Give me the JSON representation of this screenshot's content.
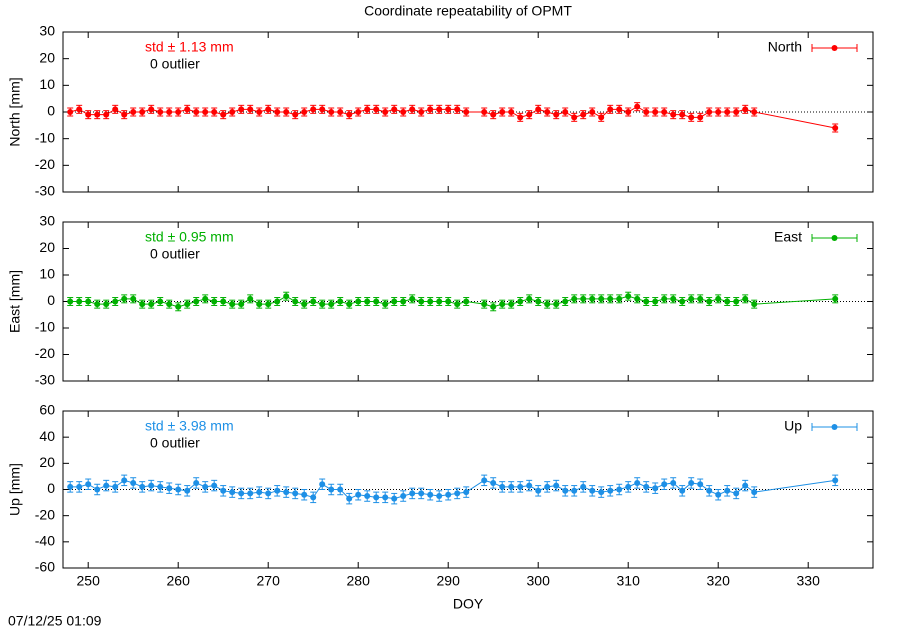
{
  "title": "Coordinate repeatability of OPMT",
  "timestamp": "07/12/25 01:09",
  "chart_data": [
    {
      "type": "line",
      "ylabel": "North [mm]",
      "annotations": [
        "std ± 1.13 mm",
        "0 outlier"
      ],
      "x": [
        248,
        249,
        250,
        251,
        252,
        253,
        254,
        255,
        256,
        257,
        258,
        259,
        260,
        261,
        262,
        263,
        264,
        265,
        266,
        267,
        268,
        269,
        270,
        271,
        272,
        273,
        274,
        275,
        276,
        277,
        278,
        279,
        280,
        281,
        282,
        283,
        284,
        285,
        286,
        287,
        288,
        289,
        290,
        291,
        292,
        294,
        295,
        296,
        297,
        298,
        299,
        300,
        301,
        302,
        303,
        304,
        305,
        306,
        307,
        308,
        309,
        310,
        311,
        312,
        313,
        314,
        315,
        316,
        317,
        318,
        319,
        320,
        321,
        322,
        323,
        324,
        333
      ],
      "series": [
        {
          "name": "North",
          "color": "#ff0000",
          "error": 1.5,
          "values": [
            0,
            1,
            -1,
            -1,
            -1,
            1,
            -1,
            0,
            0,
            1,
            0,
            0,
            0,
            1,
            0,
            0,
            0,
            -1,
            0,
            1,
            1,
            0,
            1,
            0,
            0,
            -1,
            0,
            1,
            1,
            0,
            0,
            -1,
            0,
            1,
            1,
            0,
            1,
            0,
            1,
            0,
            1,
            1,
            1,
            1,
            0,
            0,
            -1,
            0,
            0,
            -2,
            -1,
            1,
            0,
            -1,
            0,
            -2,
            -1,
            0,
            -2,
            1,
            1,
            0,
            2,
            0,
            0,
            0,
            -1,
            -1,
            -2,
            -2,
            0,
            0,
            0,
            0,
            1,
            0,
            -6
          ]
        }
      ],
      "xlim": [
        247.2,
        337.2
      ],
      "xticks": [
        250,
        260,
        270,
        280,
        290,
        300,
        310,
        320,
        330
      ],
      "xtick_labels": false,
      "ylim": [
        -30,
        30
      ],
      "yticks": [
        -30,
        -20,
        -10,
        0,
        10,
        20,
        30
      ],
      "zero_line": true,
      "legend": "upper right"
    },
    {
      "type": "line",
      "ylabel": "East [mm]",
      "annotations": [
        "std ± 0.95 mm",
        "0 outlier"
      ],
      "x": [
        248,
        249,
        250,
        251,
        252,
        253,
        254,
        255,
        256,
        257,
        258,
        259,
        260,
        261,
        262,
        263,
        264,
        265,
        266,
        267,
        268,
        269,
        270,
        271,
        272,
        273,
        274,
        275,
        276,
        277,
        278,
        279,
        280,
        281,
        282,
        283,
        284,
        285,
        286,
        287,
        288,
        289,
        290,
        291,
        292,
        294,
        295,
        296,
        297,
        298,
        299,
        300,
        301,
        302,
        303,
        304,
        305,
        306,
        307,
        308,
        309,
        310,
        311,
        312,
        313,
        314,
        315,
        316,
        317,
        318,
        319,
        320,
        321,
        322,
        323,
        324,
        333
      ],
      "series": [
        {
          "name": "East",
          "color": "#00b000",
          "error": 1.5,
          "values": [
            0,
            0,
            0,
            -1,
            -1,
            0,
            1,
            1,
            -1,
            -1,
            0,
            -1,
            -2,
            -1,
            0,
            1,
            0,
            0,
            -1,
            -1,
            1,
            -1,
            -1,
            0,
            2,
            0,
            -1,
            0,
            -1,
            -1,
            0,
            -1,
            0,
            0,
            0,
            -1,
            0,
            0,
            1,
            0,
            0,
            0,
            0,
            -1,
            0,
            -1,
            -2,
            -1,
            -1,
            0,
            1,
            0,
            -1,
            -1,
            0,
            1,
            1,
            1,
            1,
            1,
            1,
            2,
            1,
            0,
            0,
            1,
            1,
            0,
            1,
            1,
            0,
            1,
            0,
            0,
            1,
            -1,
            1
          ]
        }
      ],
      "xlim": [
        247.2,
        337.2
      ],
      "xticks": [
        250,
        260,
        270,
        280,
        290,
        300,
        310,
        320,
        330
      ],
      "xtick_labels": false,
      "ylim": [
        -30,
        30
      ],
      "yticks": [
        -30,
        -20,
        -10,
        0,
        10,
        20,
        30
      ],
      "zero_line": true,
      "legend": "upper right"
    },
    {
      "type": "line",
      "ylabel": "Up [mm]",
      "xlabel": "DOY",
      "annotations": [
        "std ± 3.98 mm",
        "0 outlier"
      ],
      "x": [
        248,
        249,
        250,
        251,
        252,
        253,
        254,
        255,
        256,
        257,
        258,
        259,
        260,
        261,
        262,
        263,
        264,
        265,
        266,
        267,
        268,
        269,
        270,
        271,
        272,
        273,
        274,
        275,
        276,
        277,
        278,
        279,
        280,
        281,
        282,
        283,
        284,
        285,
        286,
        287,
        288,
        289,
        290,
        291,
        292,
        294,
        295,
        296,
        297,
        298,
        299,
        300,
        301,
        302,
        303,
        304,
        305,
        306,
        307,
        308,
        309,
        310,
        311,
        312,
        313,
        314,
        315,
        316,
        317,
        318,
        319,
        320,
        321,
        322,
        323,
        324,
        333
      ],
      "series": [
        {
          "name": "Up",
          "color": "#1e90e6",
          "error": 4,
          "values": [
            2,
            2,
            4,
            0,
            3,
            2,
            7,
            5,
            2,
            3,
            2,
            1,
            0,
            -1,
            5,
            2,
            3,
            -1,
            -2,
            -3,
            -3,
            -2,
            -3,
            -1,
            -2,
            -3,
            -4,
            -6,
            4,
            0,
            0,
            -7,
            -4,
            -5,
            -6,
            -6,
            -7,
            -5,
            -3,
            -3,
            -4,
            -5,
            -4,
            -3,
            -2,
            7,
            5,
            2,
            2,
            2,
            3,
            -1,
            2,
            3,
            -1,
            -1,
            2,
            -1,
            -2,
            -1,
            0,
            2,
            5,
            2,
            1,
            4,
            5,
            -1,
            5,
            4,
            -1,
            -4,
            -1,
            -3,
            3,
            -2,
            7
          ]
        }
      ],
      "xlim": [
        247.2,
        337.2
      ],
      "xticks": [
        250,
        260,
        270,
        280,
        290,
        300,
        310,
        320,
        330
      ],
      "xtick_labels": true,
      "ylim": [
        -60,
        60
      ],
      "yticks": [
        -60,
        -40,
        -20,
        0,
        20,
        40,
        60
      ],
      "zero_line": true,
      "legend": "upper right"
    }
  ]
}
